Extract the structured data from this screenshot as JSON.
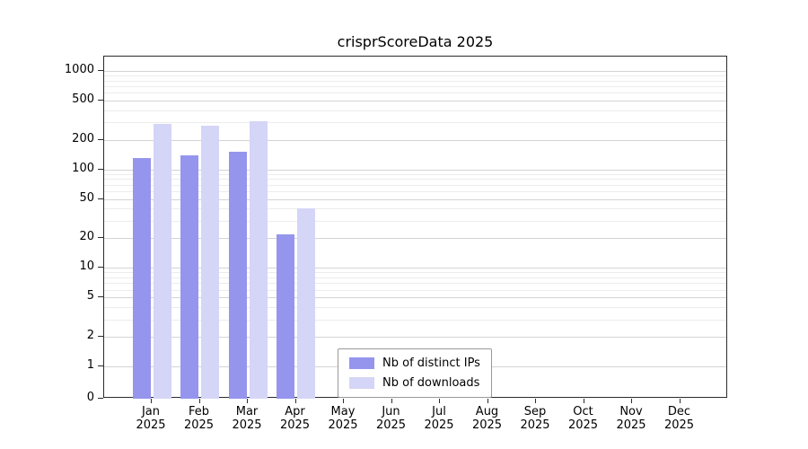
{
  "title": "crisprScoreData 2025",
  "chart_data": {
    "type": "bar",
    "title": "crisprScoreData 2025",
    "xlabel": "",
    "ylabel": "",
    "y_scale": "log",
    "ylim": [
      0,
      1400
    ],
    "grid": true,
    "legend_position": "bottom-center",
    "year_label": "2025",
    "categories": [
      "Jan",
      "Feb",
      "Mar",
      "Apr",
      "May",
      "Jun",
      "Jul",
      "Aug",
      "Sep",
      "Oct",
      "Nov",
      "Dec"
    ],
    "series": [
      {
        "name": "Nb of distinct IPs",
        "color": "#9595ee",
        "values": [
          130,
          140,
          150,
          22,
          0,
          0,
          0,
          0,
          0,
          0,
          0,
          0
        ]
      },
      {
        "name": "Nb of downloads",
        "color": "#d5d5f7",
        "values": [
          290,
          280,
          310,
          40,
          0,
          0,
          0,
          0,
          0,
          0,
          0,
          0
        ]
      }
    ],
    "y_ticks": [
      0,
      1,
      2,
      5,
      10,
      20,
      50,
      100,
      200,
      500,
      1000
    ],
    "y_minor_ticks": [
      3,
      4,
      6,
      7,
      8,
      9,
      30,
      40,
      60,
      70,
      80,
      90,
      300,
      400,
      600,
      700,
      800,
      900
    ]
  },
  "colors": {
    "distinct_ips": "#9595ee",
    "downloads": "#d5d5f7",
    "grid_major": "#d4d4d4",
    "grid_minor": "#ececec",
    "axis": "#2b2b2b"
  }
}
